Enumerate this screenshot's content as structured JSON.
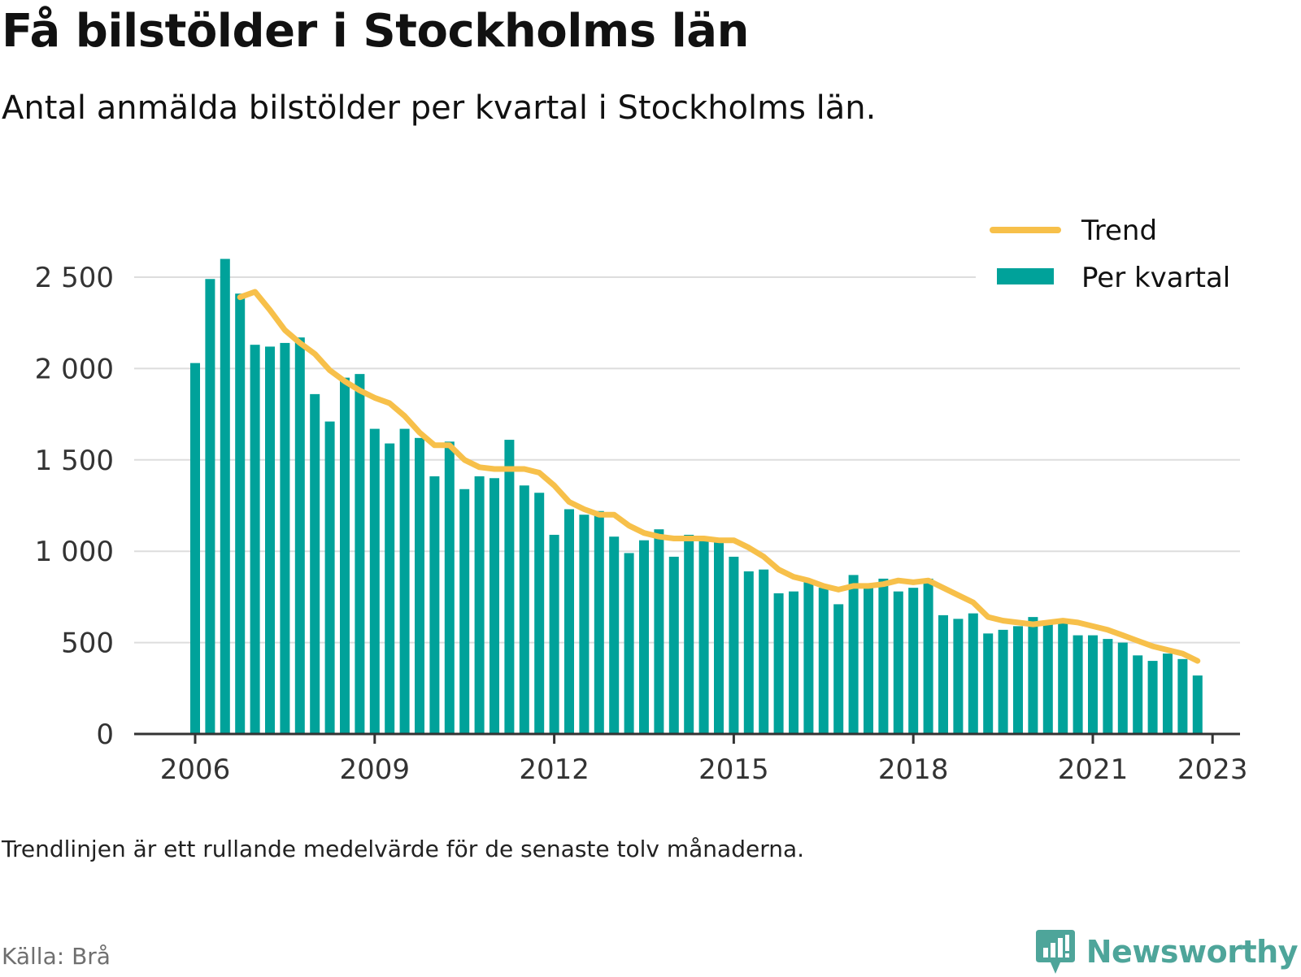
{
  "title": "Få bilstölder i Stockholms län",
  "subtitle": "Antal anmälda bilstölder per kvartal i Stockholms län.",
  "note": "Trendlinjen är ett rullande medelvärde för de senaste tolv månaderna.",
  "source": "Källa: Brå",
  "brand": {
    "name": "Newsworthy",
    "icon": "newsworthy-logo-icon",
    "color": "#4ea59a"
  },
  "colors": {
    "bars": "#00a29a",
    "trend": "#f7c04a",
    "grid": "#dddddd",
    "axis": "#333333"
  },
  "chart_data": {
    "type": "bar",
    "ylim": [
      0,
      2750
    ],
    "y_ticks": [
      {
        "value": 0,
        "label": "0"
      },
      {
        "value": 500,
        "label": "500"
      },
      {
        "value": 1000,
        "label": "1 000"
      },
      {
        "value": 1500,
        "label": "1 500"
      },
      {
        "value": 2000,
        "label": "2 000"
      },
      {
        "value": 2500,
        "label": "2 500"
      }
    ],
    "x_ticks": [
      "2006",
      "2009",
      "2012",
      "2015",
      "2018",
      "2021",
      "2023"
    ],
    "grid": true,
    "legend_position": "top-right",
    "categories": [
      "2006 Q1",
      "2006 Q2",
      "2006 Q3",
      "2006 Q4",
      "2007 Q1",
      "2007 Q2",
      "2007 Q3",
      "2007 Q4",
      "2008 Q1",
      "2008 Q2",
      "2008 Q3",
      "2008 Q4",
      "2009 Q1",
      "2009 Q2",
      "2009 Q3",
      "2009 Q4",
      "2010 Q1",
      "2010 Q2",
      "2010 Q3",
      "2010 Q4",
      "2011 Q1",
      "2011 Q2",
      "2011 Q3",
      "2011 Q4",
      "2012 Q1",
      "2012 Q2",
      "2012 Q3",
      "2012 Q4",
      "2013 Q1",
      "2013 Q2",
      "2013 Q3",
      "2013 Q4",
      "2014 Q1",
      "2014 Q2",
      "2014 Q3",
      "2014 Q4",
      "2015 Q1",
      "2015 Q2",
      "2015 Q3",
      "2015 Q4",
      "2016 Q1",
      "2016 Q2",
      "2016 Q3",
      "2016 Q4",
      "2017 Q1",
      "2017 Q2",
      "2017 Q3",
      "2017 Q4",
      "2018 Q1",
      "2018 Q2",
      "2018 Q3",
      "2018 Q4",
      "2019 Q1",
      "2019 Q2",
      "2019 Q3",
      "2019 Q4",
      "2020 Q1",
      "2020 Q2",
      "2020 Q3",
      "2020 Q4",
      "2021 Q1",
      "2021 Q2",
      "2021 Q3",
      "2021 Q4",
      "2022 Q1",
      "2022 Q2",
      "2022 Q3",
      "2022 Q4",
      "2023 Q1"
    ],
    "series": [
      {
        "name": "Per kvartal",
        "kind": "bar",
        "values": [
          2030,
          2490,
          2600,
          2410,
          2130,
          2120,
          2140,
          2170,
          1860,
          1710,
          1950,
          1970,
          1670,
          1590,
          1670,
          1620,
          1410,
          1600,
          1340,
          1410,
          1400,
          1610,
          1360,
          1320,
          1090,
          1230,
          1200,
          1220,
          1080,
          990,
          1060,
          1120,
          970,
          1090,
          1060,
          1060,
          970,
          890,
          900,
          770,
          780,
          830,
          800,
          710,
          870,
          800,
          850,
          780,
          800,
          850,
          650,
          630,
          660,
          550,
          570,
          590,
          640,
          600,
          610,
          540,
          540,
          520,
          500,
          430,
          400,
          440,
          410,
          320,
          null
        ]
      },
      {
        "name": "Trend",
        "kind": "line",
        "values": [
          null,
          null,
          null,
          2390,
          2420,
          2320,
          2210,
          2140,
          2080,
          1990,
          1930,
          1880,
          1840,
          1810,
          1740,
          1650,
          1580,
          1580,
          1500,
          1460,
          1450,
          1450,
          1450,
          1430,
          1360,
          1270,
          1230,
          1200,
          1200,
          1140,
          1100,
          1080,
          1070,
          1070,
          1070,
          1060,
          1060,
          1020,
          970,
          900,
          860,
          840,
          810,
          790,
          810,
          810,
          820,
          840,
          830,
          840,
          800,
          760,
          720,
          640,
          620,
          610,
          600,
          610,
          620,
          610,
          590,
          570,
          540,
          510,
          480,
          460,
          440,
          400,
          null
        ]
      }
    ]
  }
}
